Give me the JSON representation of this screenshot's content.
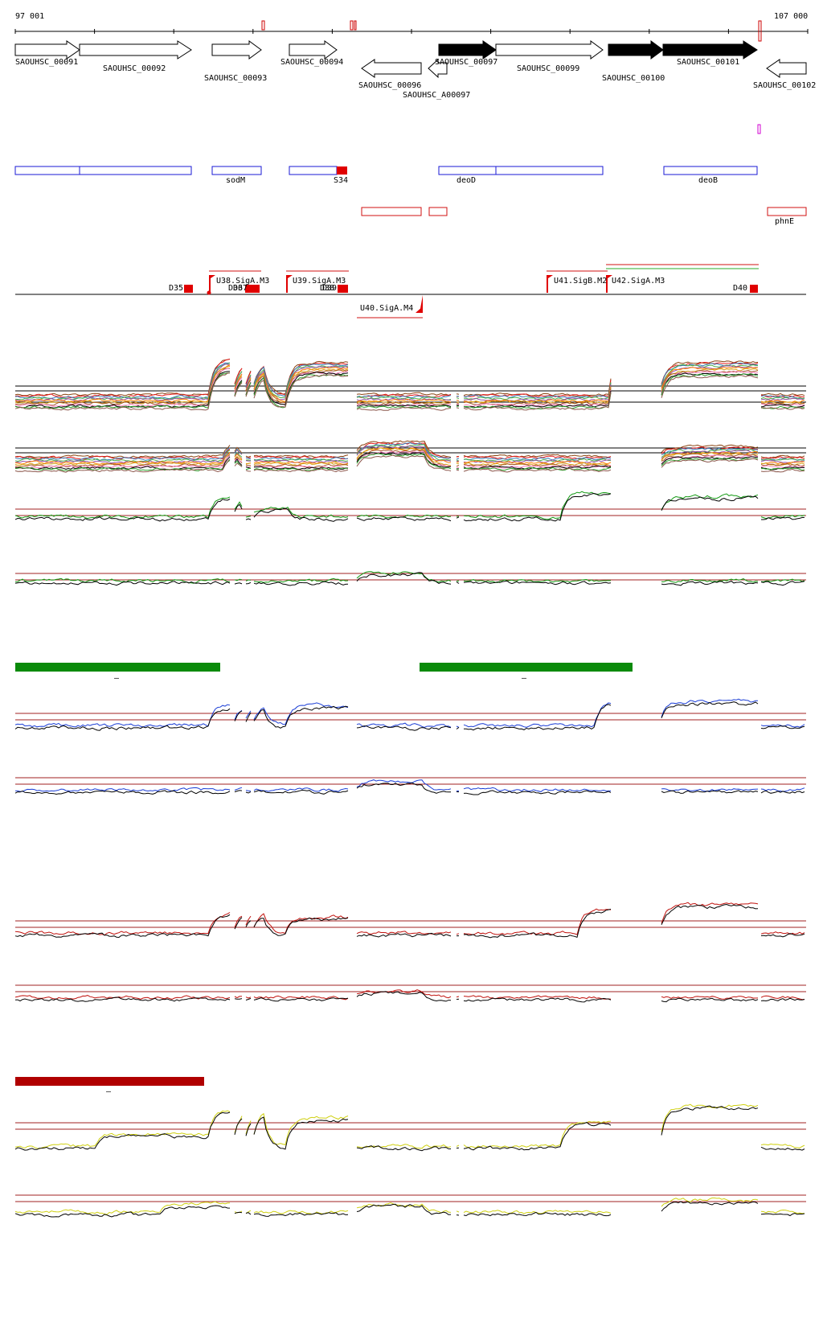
{
  "coords": {
    "start": "97 001",
    "end": "107 000"
  },
  "genes": [
    {
      "label": "SAOUHSC_00091",
      "strand": "+",
      "filled": false
    },
    {
      "label": "SAOUHSC_00092",
      "strand": "+",
      "filled": false
    },
    {
      "label": "SAOUHSC_00093",
      "strand": "+",
      "filled": false
    },
    {
      "label": "SAOUHSC_00094",
      "strand": "+",
      "filled": false
    },
    {
      "label": "SAOUHSC_00096",
      "strand": "-",
      "filled": false
    },
    {
      "label": "SAOUHSC_A00097",
      "strand": "-",
      "filled": false
    },
    {
      "label": "SAOUHSC_00097",
      "strand": "+",
      "filled": true
    },
    {
      "label": "SAOUHSC_00099",
      "strand": "+",
      "filled": false
    },
    {
      "label": "SAOUHSC_00100",
      "strand": "+",
      "filled": true
    },
    {
      "label": "SAOUHSC_00101",
      "strand": "+",
      "filled": true
    },
    {
      "label": "SAOUHSC_00102",
      "strand": "-",
      "filled": false
    }
  ],
  "operons": [
    {
      "label": ""
    },
    {
      "label": "sodM"
    },
    {
      "label": "S34"
    },
    {
      "label": "deoD"
    },
    {
      "label": "deoB"
    }
  ],
  "antisense": [
    {
      "label": ""
    },
    {
      "label": ""
    },
    {
      "label": "phnE"
    }
  ],
  "promoters": {
    "upper": [
      {
        "label": "D35"
      },
      {
        "label": "U38.SigA.M3"
      },
      {
        "label": "D36"
      },
      {
        "label": "D37"
      },
      {
        "label": "U39.SigA.M3"
      },
      {
        "label": "D38"
      },
      {
        "label": "D39"
      },
      {
        "label": "U41.SigB.M2"
      },
      {
        "label": "U42.SigA.M3"
      },
      {
        "label": "D40"
      }
    ],
    "lower": [
      {
        "label": "U40.SigA.M4"
      }
    ]
  },
  "tracks": {
    "main_series_colors": [
      "#8B4513",
      "#e41a1c",
      "#377eb8",
      "#4daf4a",
      "#984ea3",
      "#ff7f00",
      "#d4a017",
      "#a65628",
      "#f781bf",
      "#000000",
      "#2ca02c",
      "#8c564b"
    ],
    "condition_colors": {
      "green": "#119911",
      "blue": "#1a3dd6",
      "red": "#c1120e",
      "yellow": "#cfd011"
    },
    "region_markers": [
      {
        "color": "#0a8a0a",
        "label": "–"
      },
      {
        "color": "#0a8a0a",
        "label": "–"
      },
      {
        "color": "#b00000",
        "label": "–"
      }
    ]
  }
}
